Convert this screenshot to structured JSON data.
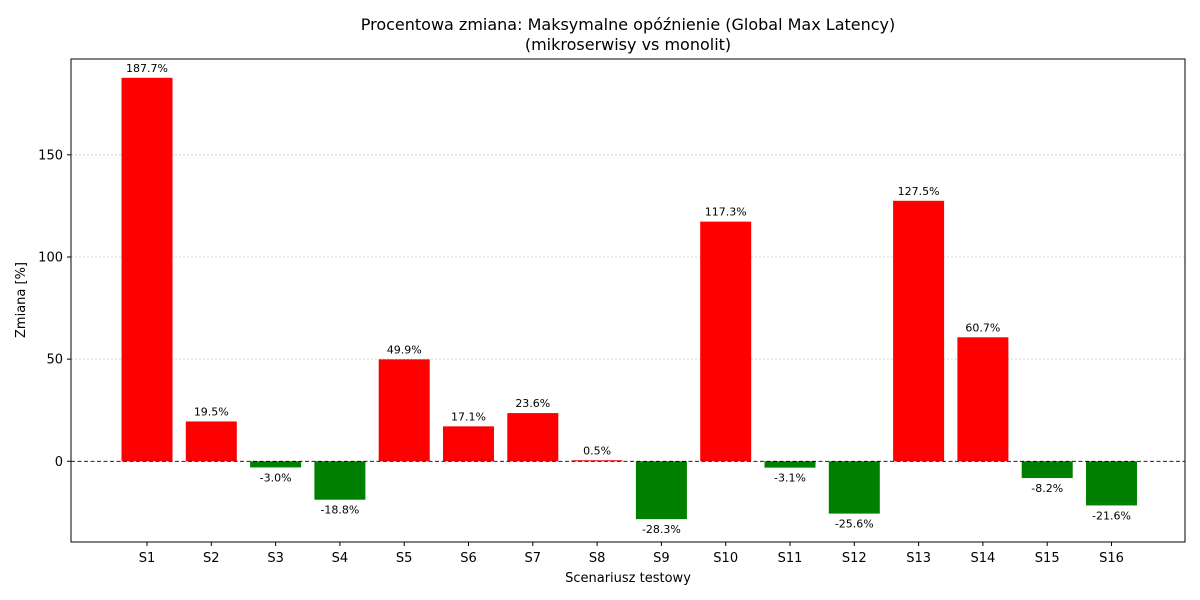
{
  "chart_data": {
    "type": "bar",
    "title": "Procentowa zmiana: Maksymalne opóźnienie (Global Max Latency)",
    "subtitle": "(mikroserwisy vs monolit)",
    "xlabel": "Scenariusz testowy",
    "ylabel": "Zmiana [%]",
    "categories": [
      "S1",
      "S2",
      "S3",
      "S4",
      "S5",
      "S6",
      "S7",
      "S8",
      "S9",
      "S10",
      "S11",
      "S12",
      "S13",
      "S14",
      "S15",
      "S16"
    ],
    "values": [
      187.7,
      19.5,
      -3.0,
      -18.8,
      49.9,
      17.1,
      23.6,
      0.5,
      -28.3,
      117.3,
      -3.1,
      -25.6,
      127.5,
      60.7,
      -8.2,
      -21.6
    ],
    "data_labels": [
      "187.7%",
      "19.5%",
      "-3.0%",
      "-18.8%",
      "49.9%",
      "17.1%",
      "23.6%",
      "0.5%",
      "-28.3%",
      "117.3%",
      "-3.1%",
      "-25.6%",
      "127.5%",
      "60.7%",
      "-8.2%",
      "-21.6%"
    ],
    "ylim": [
      -39.5,
      196.9
    ],
    "yticks": [
      0,
      50,
      100,
      150
    ],
    "ytick_labels": [
      "0",
      "50",
      "100",
      "150"
    ],
    "grid": "y-dotted",
    "zero_line": "dashed",
    "colors": {
      "positive": "#ff0000",
      "negative": "#008000",
      "grid": "#cccccc",
      "axis": "#000000"
    }
  }
}
